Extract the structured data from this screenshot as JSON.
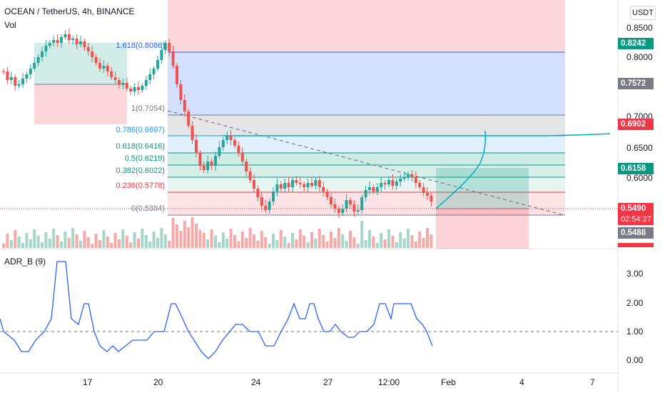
{
  "header": {
    "title": "OCEAN / TetherUS, 4h, BINANCE",
    "vol_label": "Vol",
    "currency_button": "USDT"
  },
  "price_axis": {
    "ticks": [
      "0.8500",
      "0.8000",
      "0.7000",
      "0.6500",
      "0.6000"
    ],
    "badges": {
      "high": {
        "label": "0.8242",
        "color": "#089981"
      },
      "mid": {
        "label": "0.7572",
        "color": "#787b86"
      },
      "upper": {
        "label": "0.6902",
        "color": "#f23645"
      },
      "target": {
        "label": "0.6158",
        "color": "#089981"
      },
      "last": {
        "label": "0.5490",
        "color": "#f23645"
      },
      "countdown": "02:54:27",
      "stop": {
        "label": "0.5488",
        "color": "#787b86"
      }
    }
  },
  "fibonacci": {
    "levels": [
      {
        "ratio": "1.618",
        "price": "0.8086",
        "label": "1.618(0.8086)",
        "color": "#2962ff"
      },
      {
        "ratio": "1",
        "price": "0.7054",
        "label": "1(0.7054)",
        "color": "#787b86"
      },
      {
        "ratio": "0.786",
        "price": "0.6697",
        "label": "0.786(0.6697)",
        "color": "#2196f3"
      },
      {
        "ratio": "0.618",
        "price": "0.6416",
        "label": "0.618(0.6416)",
        "color": "#089981"
      },
      {
        "ratio": "0.5",
        "price": "0.6219",
        "label": "0.5(0.6219)",
        "color": "#089981"
      },
      {
        "ratio": "0.382",
        "price": "0.6022",
        "label": "0.382(0.6022)",
        "color": "#089981"
      },
      {
        "ratio": "0.236",
        "price": "0.5778",
        "label": "0.236(0.5778)",
        "color": "#f23645"
      },
      {
        "ratio": "0",
        "price": "0.5384",
        "label": "0(0.5384)",
        "color": "#787b86"
      }
    ]
  },
  "indicator": {
    "label": "ADR_B (9)",
    "ticks": [
      "3.00",
      "2.00",
      "1.00",
      "0.00"
    ],
    "line_color": "#2962ff"
  },
  "time_axis": {
    "ticks": [
      "17",
      "20",
      "24",
      "27",
      "12:00",
      "Feb",
      "4",
      "7"
    ]
  },
  "colors": {
    "up": "#26a69a",
    "down": "#ef5350",
    "vol_up": "#a5d6c8",
    "vol_down": "#f7a9a8"
  }
}
